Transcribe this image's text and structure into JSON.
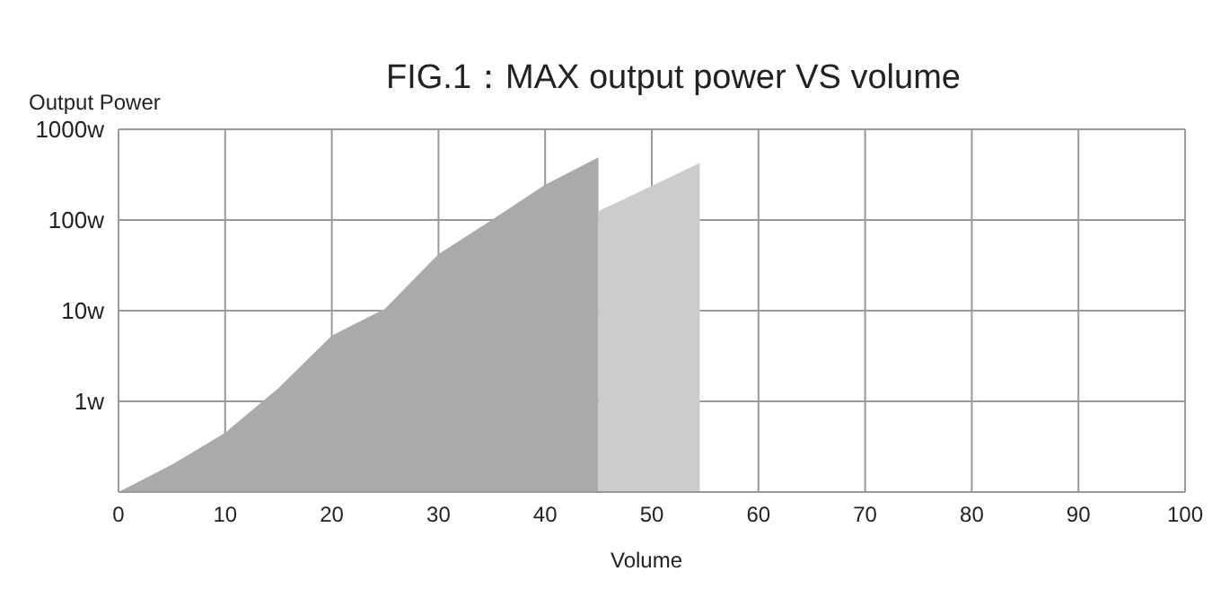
{
  "chart_data": {
    "type": "area",
    "title": "FIG.1：MAX output power  VS  volume",
    "xlabel": "Volume",
    "ylabel": "Output Power",
    "series": [
      {
        "color": "#aaaaaa",
        "x": [
          0,
          5,
          10,
          15,
          20,
          25,
          30,
          35,
          40,
          45
        ],
        "values": [
          0.1,
          0.2,
          0.45,
          1.4,
          5.3,
          10.5,
          42,
          100,
          245,
          490
        ]
      },
      {
        "color": "#cccccc",
        "x": [
          45,
          54.5
        ],
        "values": [
          125,
          425
        ]
      }
    ],
    "log": "y",
    "xlim": [
      0,
      100
    ],
    "xticks": [
      0,
      10,
      20,
      30,
      40,
      50,
      60,
      70,
      80,
      90,
      100
    ],
    "ylim": [
      0.1,
      1000
    ],
    "yticks": [
      {
        "value": 1,
        "label": "1w"
      },
      {
        "value": 10,
        "label": "10w"
      },
      {
        "value": 100,
        "label": "100w"
      },
      {
        "value": 1000,
        "label": "1000w"
      }
    ],
    "grid": true
  }
}
